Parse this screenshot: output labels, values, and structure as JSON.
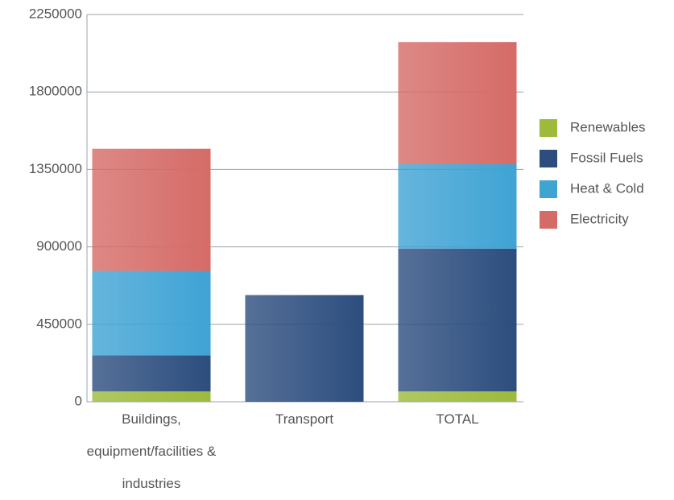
{
  "chart_data": {
    "type": "stacked-bar",
    "categories": [
      "Buildings, equipment/facilities & industries",
      "Transport",
      "TOTAL"
    ],
    "series": [
      {
        "name": "Renewables",
        "color": "#9dba3a",
        "values": [
          60000,
          0,
          60000
        ]
      },
      {
        "name": "Fossil Fuels",
        "color": "#2c4d7e",
        "values": [
          210000,
          620000,
          830000
        ]
      },
      {
        "name": "Heat & Cold",
        "color": "#3fa3d4",
        "values": [
          490000,
          0,
          490000
        ]
      },
      {
        "name": "Electricity",
        "color": "#d56b67",
        "values": [
          710000,
          0,
          710000
        ]
      }
    ],
    "ylim": [
      0,
      2250000
    ],
    "yticks": [
      0,
      450000,
      900000,
      1350000,
      1800000,
      2250000
    ],
    "grid": true,
    "legend": "right"
  }
}
